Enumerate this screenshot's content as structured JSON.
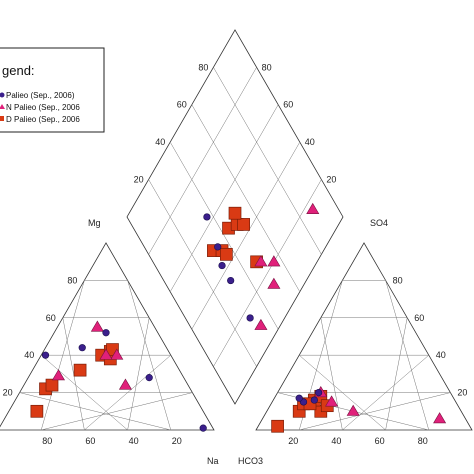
{
  "legend": {
    "title": "gend:",
    "entries": [
      {
        "label": "Palieo (Sep., 2006)",
        "marker": "circle",
        "color": "#3b1f8c"
      },
      {
        "label": "N Palieo (Sep., 2006",
        "marker": "triangle",
        "color": "#e0207a"
      },
      {
        "label": "D Palieo (Sep., 2006",
        "marker": "square",
        "color": "#d93a14"
      }
    ]
  },
  "chart_data": {
    "type": "scatter",
    "subtype": "piper-diagram",
    "axes": {
      "cation_triangle": {
        "label": "Mg",
        "label_right": "Na",
        "ticks": [
          "80",
          "60",
          "40",
          "20"
        ],
        "bottom_ticks": [
          "80",
          "60",
          "40",
          "20"
        ]
      },
      "anion_triangle": {
        "label": "SO4",
        "label_left": "HCO3",
        "ticks": [
          "80",
          "60",
          "40",
          "20"
        ],
        "bottom_ticks": [
          "20",
          "40",
          "60",
          "80"
        ]
      },
      "diamond": {
        "ticks_left": [
          "80",
          "60",
          "40",
          "20"
        ],
        "ticks_right": [
          "80",
          "60",
          "40",
          "20"
        ]
      }
    },
    "series": [
      {
        "marker": "circle",
        "color": "#3b1f8c",
        "cation": [
          [
            0.22,
            0.4
          ],
          [
            0.5,
            0.52
          ],
          [
            0.7,
            0.28
          ],
          [
            0.95,
            0.01
          ],
          [
            0.39,
            0.44
          ]
        ],
        "anion": [
          [
            0.29,
            0.2
          ],
          [
            0.27,
            0.16
          ],
          [
            0.22,
            0.15
          ],
          [
            0.2,
            0.17
          ]
        ],
        "diamond": [
          [
            0.48,
            0.33
          ],
          [
            0.57,
            0.23
          ],
          [
            0.44,
            0.37
          ],
          [
            0.42,
            0.42
          ],
          [
            0.37,
            0.5
          ]
        ]
      },
      {
        "marker": "triangle",
        "color": "#e0207a",
        "cation": [
          [
            0.28,
            0.29
          ],
          [
            0.46,
            0.55
          ],
          [
            0.55,
            0.4
          ],
          [
            0.5,
            0.4
          ],
          [
            0.59,
            0.24
          ]
        ],
        "anion": [
          [
            0.35,
            0.15
          ],
          [
            0.45,
            0.1
          ],
          [
            0.85,
            0.06
          ],
          [
            0.3,
            0.2
          ]
        ],
        "diamond": [
          [
            0.86,
            0.52
          ],
          [
            0.68,
            0.38
          ],
          [
            0.68,
            0.32
          ],
          [
            0.62,
            0.38
          ],
          [
            0.62,
            0.21
          ]
        ]
      },
      {
        "marker": "square",
        "color": "#d93a14",
        "cation": [
          [
            0.18,
            0.1
          ],
          [
            0.22,
            0.22
          ],
          [
            0.38,
            0.32
          ],
          [
            0.48,
            0.4
          ],
          [
            0.52,
            0.42
          ],
          [
            0.52,
            0.38
          ],
          [
            0.25,
            0.24
          ],
          [
            0.53,
            0.43
          ]
        ],
        "anion": [
          [
            0.2,
            0.1
          ],
          [
            0.22,
            0.14
          ],
          [
            0.3,
            0.1
          ],
          [
            0.27,
            0.16
          ],
          [
            0.3,
            0.18
          ],
          [
            0.33,
            0.13
          ],
          [
            0.1,
            0.02
          ],
          [
            0.25,
            0.14
          ]
        ],
        "diamond": [
          [
            0.4,
            0.41
          ],
          [
            0.44,
            0.41
          ],
          [
            0.46,
            0.4
          ],
          [
            0.47,
            0.47
          ],
          [
            0.51,
            0.48
          ],
          [
            0.54,
            0.48
          ],
          [
            0.5,
            0.51
          ],
          [
            0.6,
            0.38
          ]
        ]
      }
    ]
  }
}
